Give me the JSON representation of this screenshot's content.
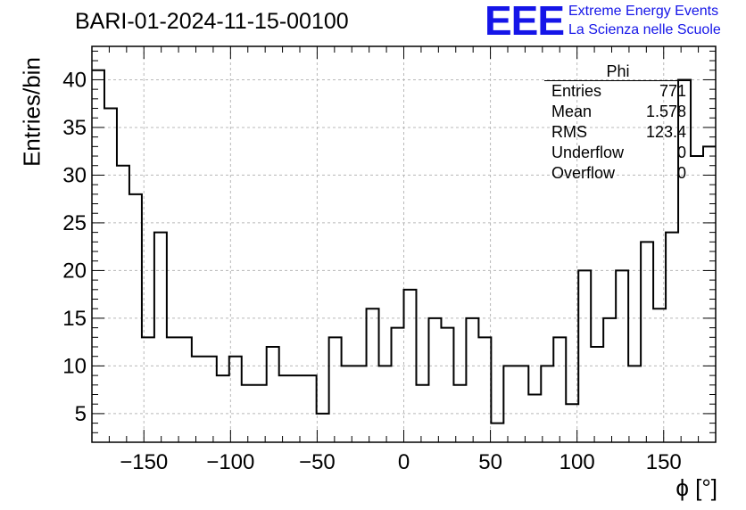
{
  "title": "BARI-01-2024-11-15-00100",
  "logo": {
    "mark": "EEE",
    "line1": "Extreme Energy Events",
    "line2": "La Scienza nelle Scuole",
    "color": "#1515e8"
  },
  "stats": {
    "name": "Phi",
    "rows": [
      {
        "label": "Entries",
        "value": "771"
      },
      {
        "label": "Mean",
        "value": "1.578"
      },
      {
        "label": "RMS",
        "value": "123.4"
      },
      {
        "label": "Underflow",
        "value": "0"
      },
      {
        "label": "Overflow",
        "value": "0"
      }
    ]
  },
  "chart_data": {
    "type": "histogram",
    "title": "BARI-01-2024-11-15-00100",
    "xlabel": "ϕ [°]",
    "ylabel": "Entries/bin",
    "xlim": [
      -180,
      180
    ],
    "ylim": [
      2,
      43.5
    ],
    "bin_width": 7.2,
    "x_ticks": [
      -150,
      -100,
      -50,
      0,
      50,
      100,
      150
    ],
    "x_tick_labels": [
      "−150",
      "−100",
      "−50",
      "0",
      "50",
      "100",
      "150"
    ],
    "y_ticks": [
      5,
      10,
      15,
      20,
      25,
      30,
      35,
      40
    ],
    "grid": true,
    "line_color": "#000000",
    "bin_edges_start": -180,
    "values": [
      41,
      37,
      31,
      28,
      13,
      24,
      13,
      13,
      11,
      11,
      9,
      11,
      8,
      8,
      12,
      9,
      9,
      9,
      5,
      13,
      10,
      10,
      16,
      10,
      14,
      18,
      8,
      15,
      14,
      8,
      15,
      13,
      4,
      10,
      10,
      7,
      10,
      13,
      6,
      20,
      12,
      15,
      20,
      10,
      23,
      16,
      24,
      40,
      32,
      33
    ]
  }
}
